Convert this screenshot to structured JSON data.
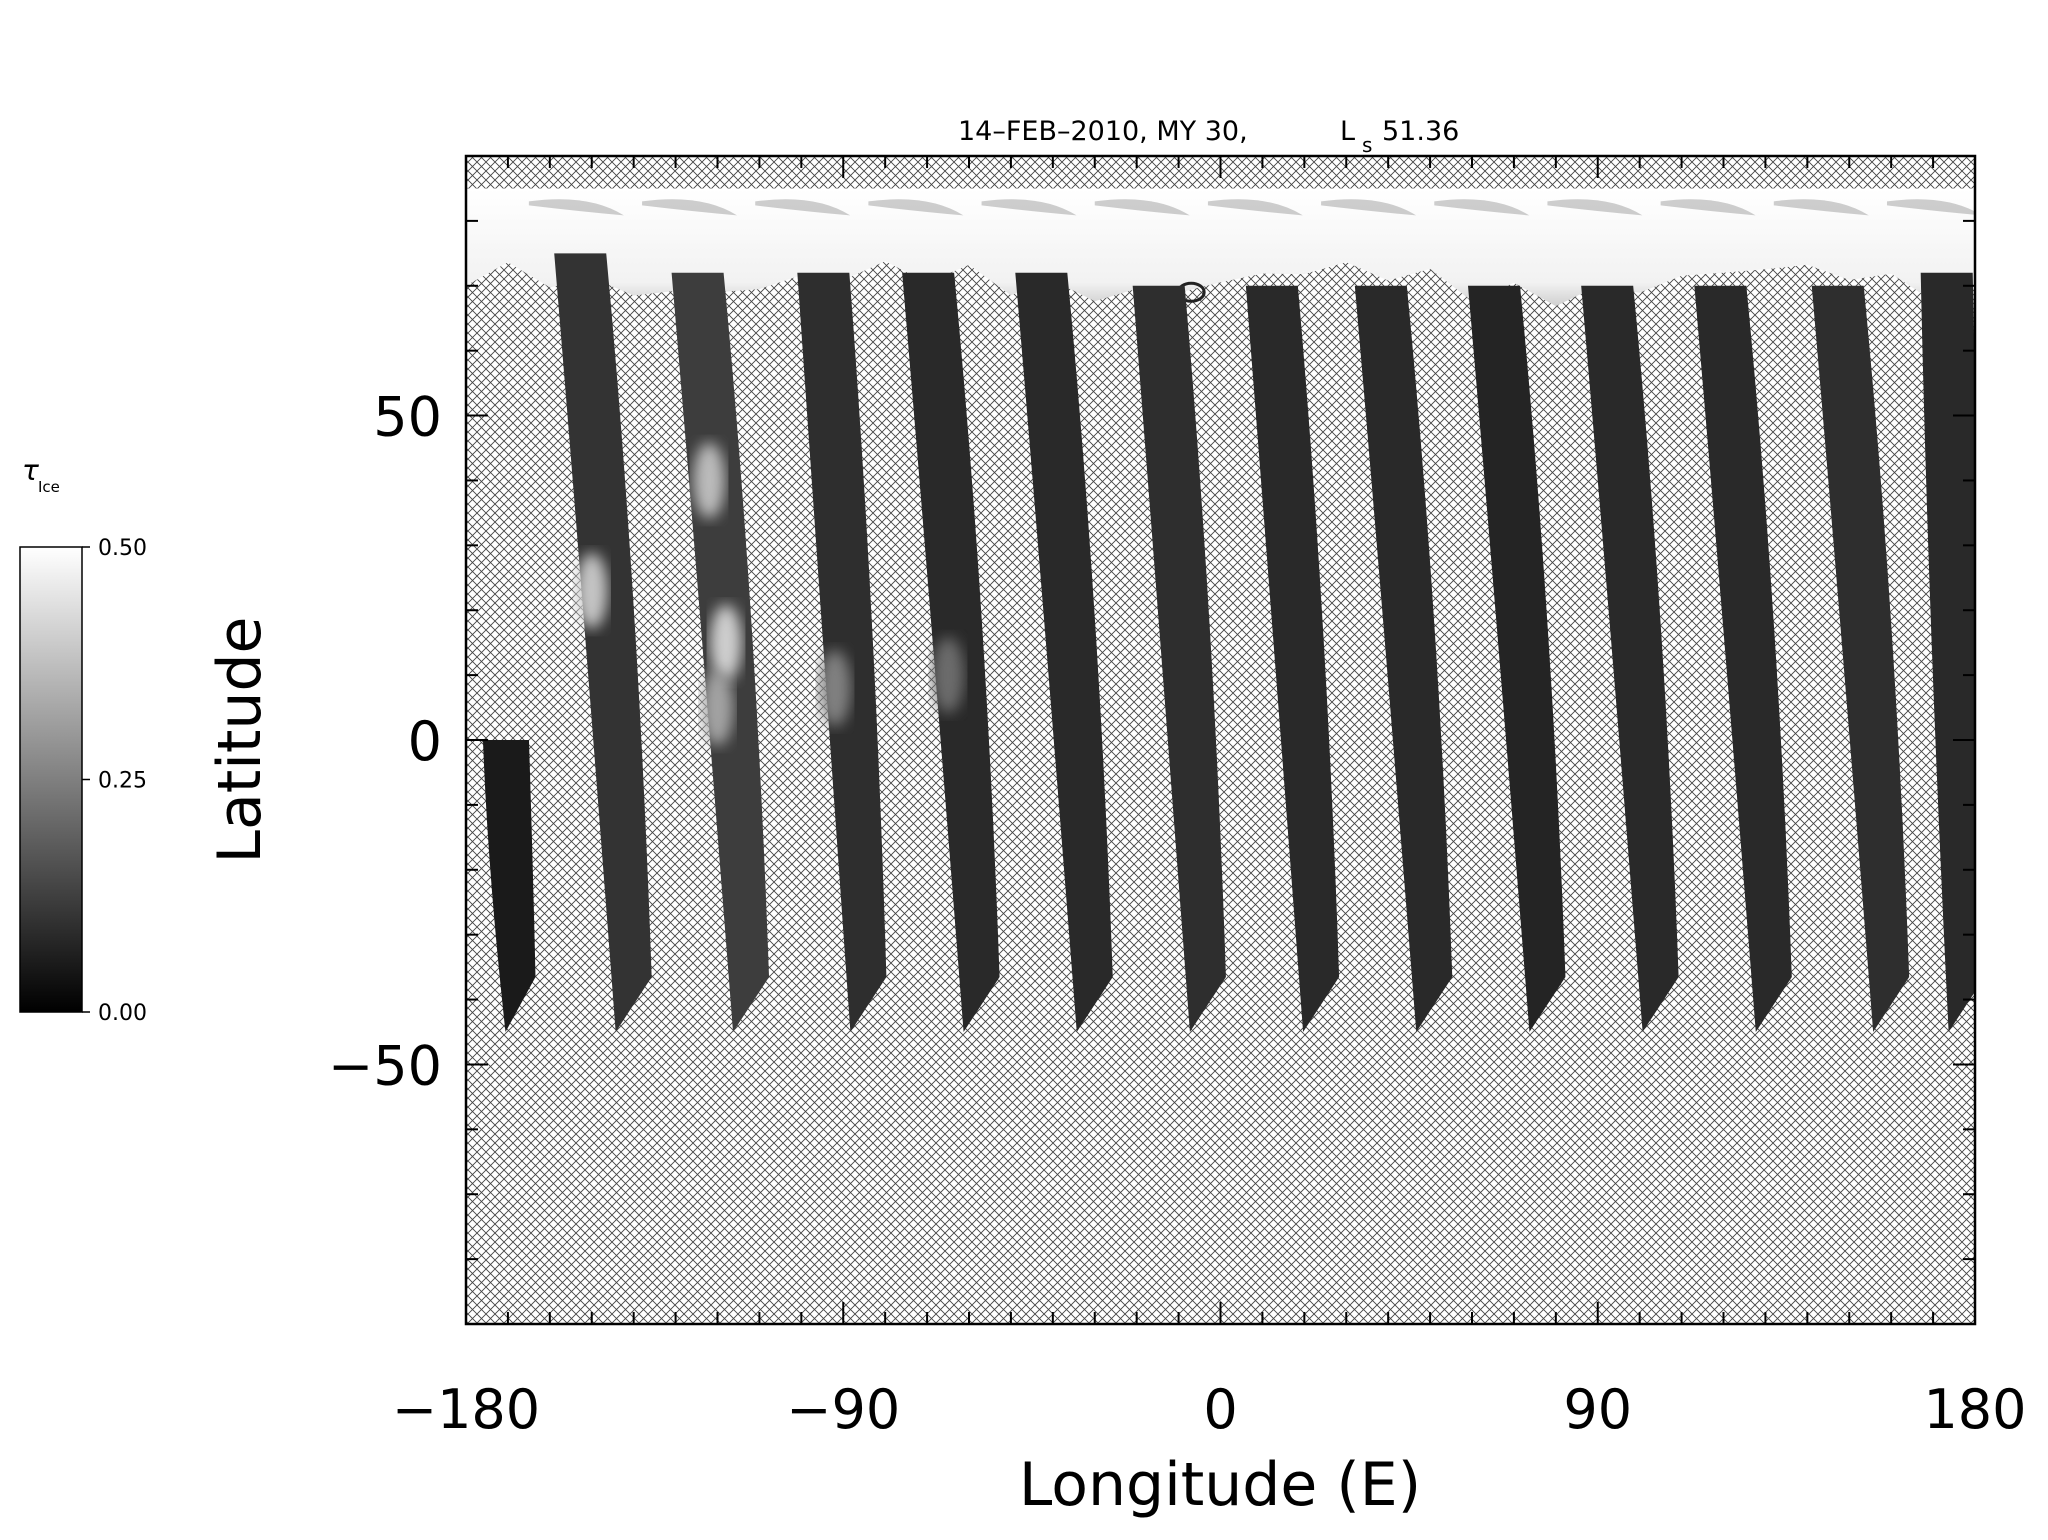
{
  "chart_data": {
    "type": "heatmap",
    "title": "14–FEB–2010, MY 30,",
    "title_ls_symbol": "L",
    "title_ls_subscript": "s",
    "title_ls_value": "51.36",
    "xlabel": "Longitude (E)",
    "ylabel": "Latitude",
    "xlim": [
      -180,
      180
    ],
    "ylim": [
      -90,
      90
    ],
    "x_major_ticks": [
      -180,
      -90,
      0,
      90,
      180
    ],
    "x_tick_labels": [
      "−180",
      "−90",
      "0",
      "90",
      "180"
    ],
    "y_major_ticks": [
      -50,
      0,
      50
    ],
    "y_tick_labels": [
      "−50",
      "0",
      "50"
    ],
    "x_minor_step": 10,
    "y_minor_step": 10,
    "grid": false,
    "missing_data": "cross-hatched",
    "colorbar": {
      "label_symbol": "τ",
      "label_subscript": "Ice",
      "range": [
        0.0,
        0.5
      ],
      "tick_labels": [
        "0.50",
        "0.25",
        "0.00"
      ],
      "tick_values": [
        0.5,
        0.25,
        0.0
      ],
      "colormap": "grayscale",
      "placement": "left"
    },
    "polar_cap": {
      "lat_min": 68,
      "lat_max": 85,
      "tau_ice": 0.5
    },
    "swaths": [
      {
        "lon_top": -175,
        "lon_bottom": -167,
        "lat_top": 0,
        "lat_bottom": -45,
        "tau_ice": 0.05
      },
      {
        "lon_top": -158,
        "lon_bottom": -140,
        "lat_top": 75,
        "lat_bottom": -45,
        "tau_ice": 0.1
      },
      {
        "lon_top": -130,
        "lon_bottom": -112,
        "lat_top": 72,
        "lat_bottom": -45,
        "tau_ice": 0.12
      },
      {
        "lon_top": -100,
        "lon_bottom": -84,
        "lat_top": 72,
        "lat_bottom": -45,
        "tau_ice": 0.09
      },
      {
        "lon_top": -75,
        "lon_bottom": -57,
        "lat_top": 72,
        "lat_bottom": -45,
        "tau_ice": 0.08
      },
      {
        "lon_top": -48,
        "lon_bottom": -30,
        "lat_top": 72,
        "lat_bottom": -45,
        "tau_ice": 0.08
      },
      {
        "lon_top": -20,
        "lon_bottom": -3,
        "lat_top": 70,
        "lat_bottom": -45,
        "tau_ice": 0.09
      },
      {
        "lon_top": 7,
        "lon_bottom": 24,
        "lat_top": 70,
        "lat_bottom": -45,
        "tau_ice": 0.08
      },
      {
        "lon_top": 33,
        "lon_bottom": 51,
        "lat_top": 70,
        "lat_bottom": -45,
        "tau_ice": 0.08
      },
      {
        "lon_top": 60,
        "lon_bottom": 78,
        "lat_top": 70,
        "lat_bottom": -45,
        "tau_ice": 0.07
      },
      {
        "lon_top": 87,
        "lon_bottom": 105,
        "lat_top": 70,
        "lat_bottom": -45,
        "tau_ice": 0.08
      },
      {
        "lon_top": 114,
        "lon_bottom": 132,
        "lat_top": 70,
        "lat_bottom": -45,
        "tau_ice": 0.08
      },
      {
        "lon_top": 142,
        "lon_bottom": 160,
        "lat_top": 70,
        "lat_bottom": -45,
        "tau_ice": 0.09
      },
      {
        "lon_top": 168,
        "lon_bottom": 178,
        "lat_top": 72,
        "lat_bottom": -45,
        "tau_ice": 0.08
      }
    ],
    "bright_patches": [
      {
        "lon": -150,
        "lat": 23,
        "tau_ice": 0.4
      },
      {
        "lon": -122,
        "lat": 40,
        "tau_ice": 0.38
      },
      {
        "lon": -118,
        "lat": 15,
        "tau_ice": 0.42
      },
      {
        "lon": -120,
        "lat": 5,
        "tau_ice": 0.33
      },
      {
        "lon": -92,
        "lat": 8,
        "tau_ice": 0.26
      },
      {
        "lon": -65,
        "lat": 10,
        "tau_ice": 0.22
      }
    ]
  }
}
